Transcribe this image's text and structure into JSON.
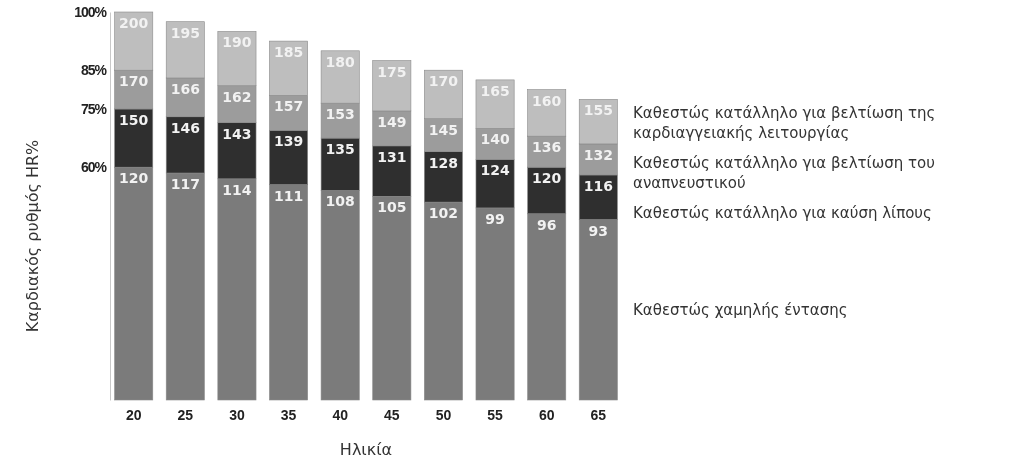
{
  "chart_data": {
    "type": "bar",
    "stacked": true,
    "xlabel": "Ηλικία",
    "ylabel": "Καρδιακός ρυθμός HR%",
    "categories": [
      "20",
      "25",
      "30",
      "35",
      "40",
      "45",
      "50",
      "55",
      "60",
      "65"
    ],
    "ylim": [
      0,
      100
    ],
    "yticks": [
      {
        "value": 60,
        "label": "60%"
      },
      {
        "value": 75,
        "label": "75%"
      },
      {
        "value": 85,
        "label": "85%"
      },
      {
        "value": 100,
        "label": "100%"
      }
    ],
    "series": [
      {
        "name": "Καθεστώς χαμηλής έντασης",
        "color": "#7b7b7b",
        "values": [
          60,
          58.5,
          57,
          55.5,
          54,
          52.5,
          51,
          49.5,
          48,
          46.5
        ]
      },
      {
        "name": "Καθεστώς κατάλληλο για καύση λίπους",
        "color": "#2f2f2f",
        "values": [
          15,
          14.5,
          14.5,
          14,
          13.5,
          13,
          13,
          12.5,
          12,
          11.5
        ]
      },
      {
        "name": "Καθεστώς κατάλληλο για βελτίωση του αναπνευστικού",
        "color": "#9c9c9c",
        "values": [
          10,
          10,
          9.5,
          9,
          9,
          9,
          8.5,
          8,
          8,
          8
        ]
      },
      {
        "name": "Καθεστώς κατάλληλο για βελτίωση της καρδιαγγειακής λειτουργίας",
        "color": "#bebebe",
        "values": [
          15,
          14.5,
          14,
          14,
          13.5,
          13,
          12.5,
          12.5,
          12,
          11.5
        ]
      }
    ],
    "annotations": [
      {
        "text": "120",
        "x": "20",
        "y": 60
      },
      {
        "text": "117",
        "x": "25",
        "y": 58.5
      },
      {
        "text": "114",
        "x": "30",
        "y": 57
      },
      {
        "text": "111",
        "x": "35",
        "y": 55.5
      },
      {
        "text": "108",
        "x": "40",
        "y": 54
      },
      {
        "text": "105",
        "x": "45",
        "y": 52.5
      },
      {
        "text": "102",
        "x": "50",
        "y": 51
      },
      {
        "text": "99",
        "x": "55",
        "y": 49.5
      },
      {
        "text": "96",
        "x": "60",
        "y": 48
      },
      {
        "text": "93",
        "x": "65",
        "y": 46.5
      },
      {
        "text": "150",
        "x": "20",
        "y": 75
      },
      {
        "text": "146",
        "x": "25",
        "y": 73
      },
      {
        "text": "143",
        "x": "30",
        "y": 71.5
      },
      {
        "text": "139",
        "x": "35",
        "y": 69.5
      },
      {
        "text": "135",
        "x": "40",
        "y": 67.5
      },
      {
        "text": "131",
        "x": "45",
        "y": 65.5
      },
      {
        "text": "128",
        "x": "50",
        "y": 64
      },
      {
        "text": "124",
        "x": "55",
        "y": 62
      },
      {
        "text": "120",
        "x": "60",
        "y": 60
      },
      {
        "text": "116",
        "x": "65",
        "y": 58
      },
      {
        "text": "170",
        "x": "20",
        "y": 85
      },
      {
        "text": "166",
        "x": "25",
        "y": 83
      },
      {
        "text": "162",
        "x": "30",
        "y": 81
      },
      {
        "text": "157",
        "x": "35",
        "y": 78.5
      },
      {
        "text": "153",
        "x": "40",
        "y": 76.5
      },
      {
        "text": "149",
        "x": "45",
        "y": 74.5
      },
      {
        "text": "145",
        "x": "50",
        "y": 72.5
      },
      {
        "text": "140",
        "x": "55",
        "y": 70
      },
      {
        "text": "136",
        "x": "60",
        "y": 68
      },
      {
        "text": "132",
        "x": "65",
        "y": 66
      },
      {
        "text": "200",
        "x": "20",
        "y": 100
      },
      {
        "text": "195",
        "x": "25",
        "y": 97.5
      },
      {
        "text": "190",
        "x": "30",
        "y": 95
      },
      {
        "text": "185",
        "x": "35",
        "y": 92.5
      },
      {
        "text": "180",
        "x": "40",
        "y": 90
      },
      {
        "text": "175",
        "x": "45",
        "y": 87.5
      },
      {
        "text": "170",
        "x": "50",
        "y": 85
      },
      {
        "text": "165",
        "x": "55",
        "y": 82.5
      },
      {
        "text": "160",
        "x": "60",
        "y": 80
      },
      {
        "text": "155",
        "x": "65",
        "y": 77.5
      }
    ]
  }
}
